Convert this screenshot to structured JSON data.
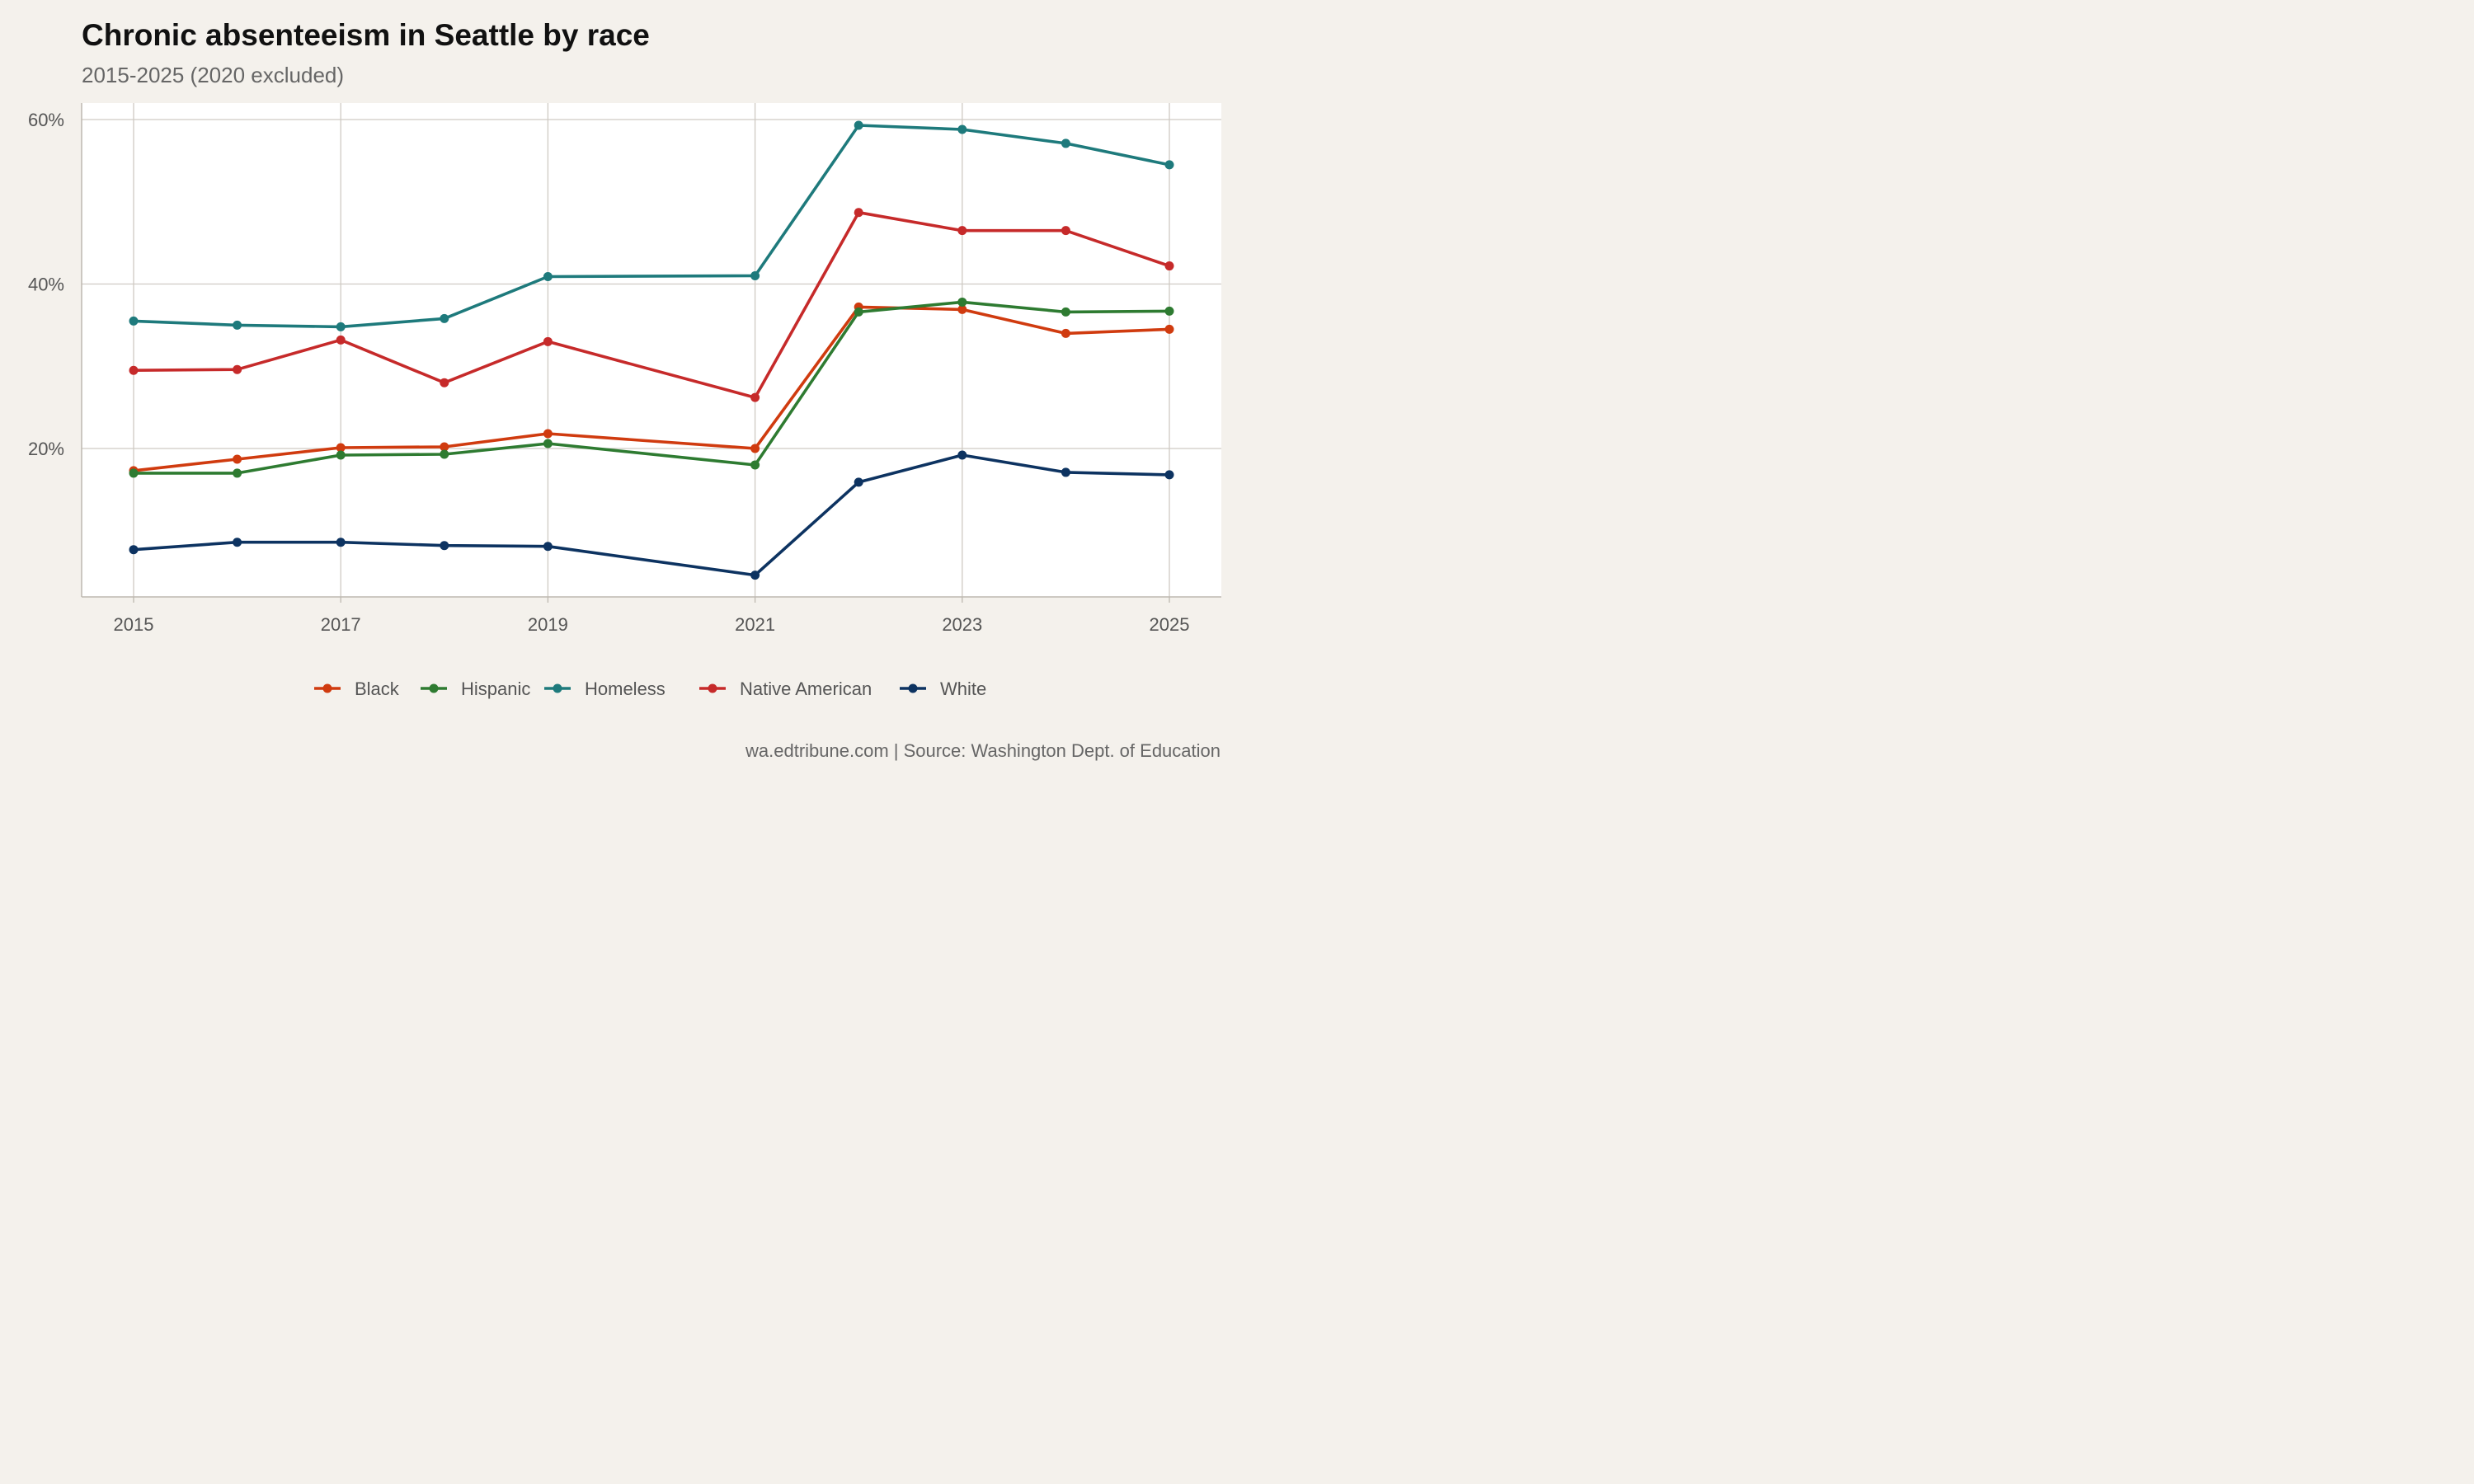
{
  "title": "Chronic absenteeism in Seattle by race",
  "subtitle": "2015-2025 (2020 excluded)",
  "caption": "wa.edtribune.com | Source: Washington Dept. of Education",
  "chart_data": {
    "type": "line",
    "title": "Chronic absenteeism in Seattle by race",
    "subtitle": "2015-2025 (2020 excluded)",
    "xlabel": "",
    "ylabel": "",
    "xlim": [
      2014.5,
      2025.5
    ],
    "ylim": [
      2,
      62
    ],
    "x_ticks": [
      2015,
      2017,
      2019,
      2021,
      2023,
      2025
    ],
    "x_tick_labels": [
      "2015",
      "2017",
      "2019",
      "2021",
      "2023",
      "2025"
    ],
    "y_ticks": [
      20,
      40,
      60
    ],
    "y_tick_labels": [
      "20%",
      "40%",
      "60%"
    ],
    "grid": true,
    "legend_position": "bottom",
    "x": [
      2015,
      2016,
      2017,
      2018,
      2019,
      2021,
      2022,
      2023,
      2024,
      2025
    ],
    "series": [
      {
        "name": "Black",
        "color": "#d03b0f",
        "values": [
          17.3,
          18.7,
          20.1,
          20.2,
          21.8,
          20.0,
          37.2,
          36.9,
          34.0,
          34.5
        ]
      },
      {
        "name": "Hispanic",
        "color": "#2e7b31",
        "values": [
          17.0,
          17.0,
          19.2,
          19.3,
          20.6,
          18.0,
          36.6,
          37.8,
          36.6,
          36.7
        ]
      },
      {
        "name": "Homeless",
        "color": "#1e7a7c",
        "values": [
          35.5,
          35.0,
          34.8,
          35.8,
          40.9,
          41.0,
          59.3,
          58.8,
          57.1,
          54.5
        ]
      },
      {
        "name": "Native American",
        "color": "#c62a2a",
        "values": [
          29.5,
          29.6,
          33.2,
          28.0,
          33.0,
          26.2,
          48.7,
          46.5,
          46.5,
          42.2
        ]
      },
      {
        "name": "White",
        "color": "#0d3361",
        "values": [
          7.7,
          8.6,
          8.6,
          8.2,
          8.1,
          4.6,
          15.9,
          19.2,
          17.1,
          16.8
        ]
      }
    ]
  }
}
